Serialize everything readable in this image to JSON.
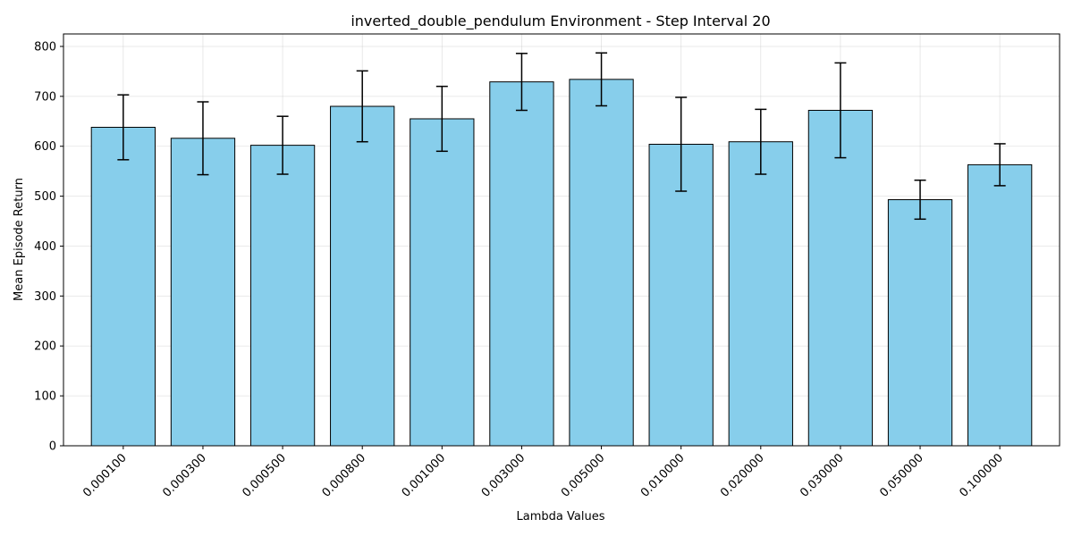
{
  "chart_data": {
    "type": "bar",
    "title": "inverted_double_pendulum Environment - Step Interval 20",
    "xlabel": "Lambda Values",
    "ylabel": "Mean Episode Return",
    "categories": [
      "0.000100",
      "0.000300",
      "0.000500",
      "0.000800",
      "0.001000",
      "0.003000",
      "0.005000",
      "0.010000",
      "0.020000",
      "0.030000",
      "0.050000",
      "0.100000"
    ],
    "values": [
      638,
      616,
      602,
      680,
      655,
      729,
      734,
      604,
      609,
      672,
      493,
      563
    ],
    "errors": [
      65,
      73,
      58,
      71,
      65,
      57,
      53,
      94,
      65,
      95,
      39,
      42
    ],
    "ylim": [
      0,
      825
    ],
    "yticks": [
      0,
      100,
      200,
      300,
      400,
      500,
      600,
      700,
      800
    ],
    "grid": true,
    "bar_color": "#87ceeb",
    "edge_color": "#000000",
    "xtick_rotation": 45
  }
}
